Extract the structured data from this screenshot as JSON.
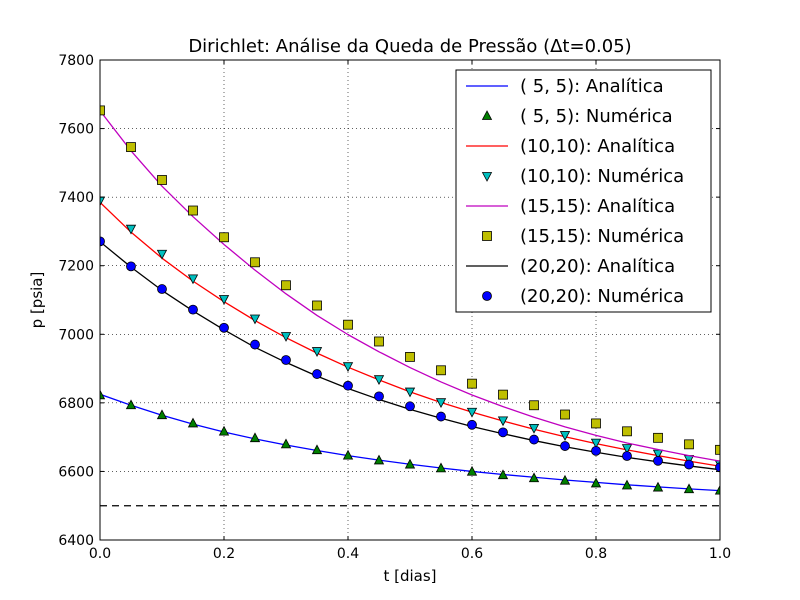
{
  "chart_data": {
    "type": "line",
    "title": "Dirichlet: Análise da Queda de Pressão (Δt=0.05)",
    "xlabel": "t [dias]",
    "ylabel": "p [psia]",
    "xlim": [
      0.0,
      1.0
    ],
    "ylim": [
      6400,
      7800
    ],
    "xticks": [
      0.0,
      0.2,
      0.4,
      0.6,
      0.8,
      1.0
    ],
    "xtick_labels": [
      "0.0",
      "0.2",
      "0.4",
      "0.6",
      "0.8",
      "1.0"
    ],
    "yticks": [
      6400,
      6600,
      6800,
      7000,
      7200,
      7400,
      7600,
      7800
    ],
    "ytick_labels": [
      "6400",
      "6600",
      "6800",
      "7000",
      "7200",
      "7400",
      "7600",
      "7800"
    ],
    "grid": true,
    "legend_position": "top-right",
    "reference_line": {
      "y": 6500,
      "style": "dashed",
      "color": "#000000"
    },
    "t": [
      0.0,
      0.05,
      0.1,
      0.15,
      0.2,
      0.25,
      0.3,
      0.35,
      0.4,
      0.45,
      0.5,
      0.55,
      0.6,
      0.65,
      0.7,
      0.75,
      0.8,
      0.85,
      0.9,
      0.95,
      1.0
    ],
    "series": [
      {
        "name": "( 5, 5): Analítica",
        "kind": "line",
        "color": "#0000ff",
        "values": [
          6825,
          6793,
          6764,
          6738,
          6715,
          6695,
          6677,
          6661,
          6646,
          6633,
          6621,
          6610,
          6600,
          6591,
          6583,
          6575,
          6568,
          6561,
          6555,
          6549,
          6544
        ]
      },
      {
        "name": "( 5, 5): Numérica",
        "kind": "marker",
        "marker": "triangle-up",
        "color": "#007f00",
        "values": [
          6822,
          6793,
          6764,
          6740,
          6716,
          6697,
          6679,
          6662,
          6646,
          6632,
          6620,
          6609,
          6599,
          6589,
          6580,
          6573,
          6565,
          6559,
          6553,
          6548,
          6544
        ]
      },
      {
        "name": "(10,10): Analítica",
        "kind": "line",
        "color": "#ff0000",
        "values": [
          7385,
          7298,
          7222,
          7155,
          7095,
          7040,
          6990,
          6945,
          6904,
          6867,
          6832,
          6801,
          6773,
          6747,
          6723,
          6701,
          6681,
          6663,
          6646,
          6630,
          6615
        ]
      },
      {
        "name": "(10,10): Numérica",
        "kind": "marker",
        "marker": "triangle-down",
        "color": "#00bfbf",
        "values": [
          7390,
          7308,
          7235,
          7163,
          7103,
          7046,
          6995,
          6951,
          6907,
          6869,
          6833,
          6802,
          6774,
          6749,
          6727,
          6706,
          6684,
          6668,
          6652,
          6636,
          6621
        ]
      },
      {
        "name": "(15,15): Analítica",
        "kind": "line",
        "color": "#bf00bf",
        "values": [
          7652,
          7535,
          7432,
          7343,
          7262,
          7187,
          7118,
          7055,
          6999,
          6949,
          6903,
          6861,
          6823,
          6789,
          6758,
          6730,
          6705,
          6683,
          6664,
          6646,
          6630
        ]
      },
      {
        "name": "(15,15): Numérica",
        "kind": "marker",
        "marker": "square",
        "color": "#bfbf00",
        "values": [
          7653,
          7546,
          7450,
          7361,
          7283,
          7210,
          7143,
          7084,
          7028,
          6979,
          6934,
          6895,
          6856,
          6824,
          6793,
          6766,
          6740,
          6717,
          6698,
          6679,
          6663
        ]
      },
      {
        "name": "(20,20): Analítica",
        "kind": "line",
        "color": "#000000",
        "values": [
          7270,
          7196,
          7128,
          7068,
          7013,
          6962,
          6918,
          6878,
          6842,
          6810,
          6781,
          6755,
          6731,
          6710,
          6690,
          6672,
          6656,
          6641,
          6628,
          6616,
          6605
        ]
      },
      {
        "name": "(20,20): Numérica",
        "kind": "marker",
        "marker": "circle",
        "color": "#0000ff",
        "values": [
          7271,
          7198,
          7132,
          7072,
          7019,
          6970,
          6925,
          6884,
          6850,
          6819,
          6790,
          6760,
          6736,
          6714,
          6693,
          6674,
          6660,
          6645,
          6631,
          6620,
          6612
        ]
      }
    ]
  }
}
